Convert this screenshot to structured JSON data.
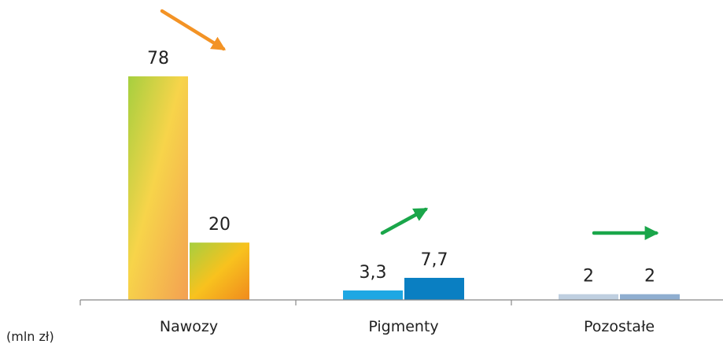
{
  "chart_data": {
    "type": "bar",
    "unit_label": "(mln zł)",
    "categories": [
      "Nawozy",
      "Pigmenty",
      "Pozostałe"
    ],
    "series": [
      {
        "values": [
          78,
          3.3,
          2
        ]
      },
      {
        "values": [
          20,
          7.7,
          2
        ]
      }
    ],
    "value_labels": [
      [
        "78",
        "20"
      ],
      [
        "3,3",
        "7,7"
      ],
      [
        "2",
        "2"
      ]
    ],
    "trends": [
      "down",
      "up",
      "flat"
    ],
    "colors": {
      "trend_down": "#f39325",
      "trend_up": "#1aa64a",
      "trend_flat": "#1aa64a",
      "nawozy_a": [
        "#a6cf3f",
        "#f7d44a",
        "#f3a052"
      ],
      "nawozy_b": [
        "#a6cf3f",
        "#f8c21e",
        "#f08a1d"
      ],
      "pigmenty_a": "#1ea7e3",
      "pigmenty_b": "#0a7fc2",
      "pozostale_a": "#bfcfe0",
      "pozostale_b": "#8faed0",
      "axis": "#888888"
    },
    "ylim": [
      0,
      78
    ],
    "grid": false,
    "legend": "none"
  }
}
